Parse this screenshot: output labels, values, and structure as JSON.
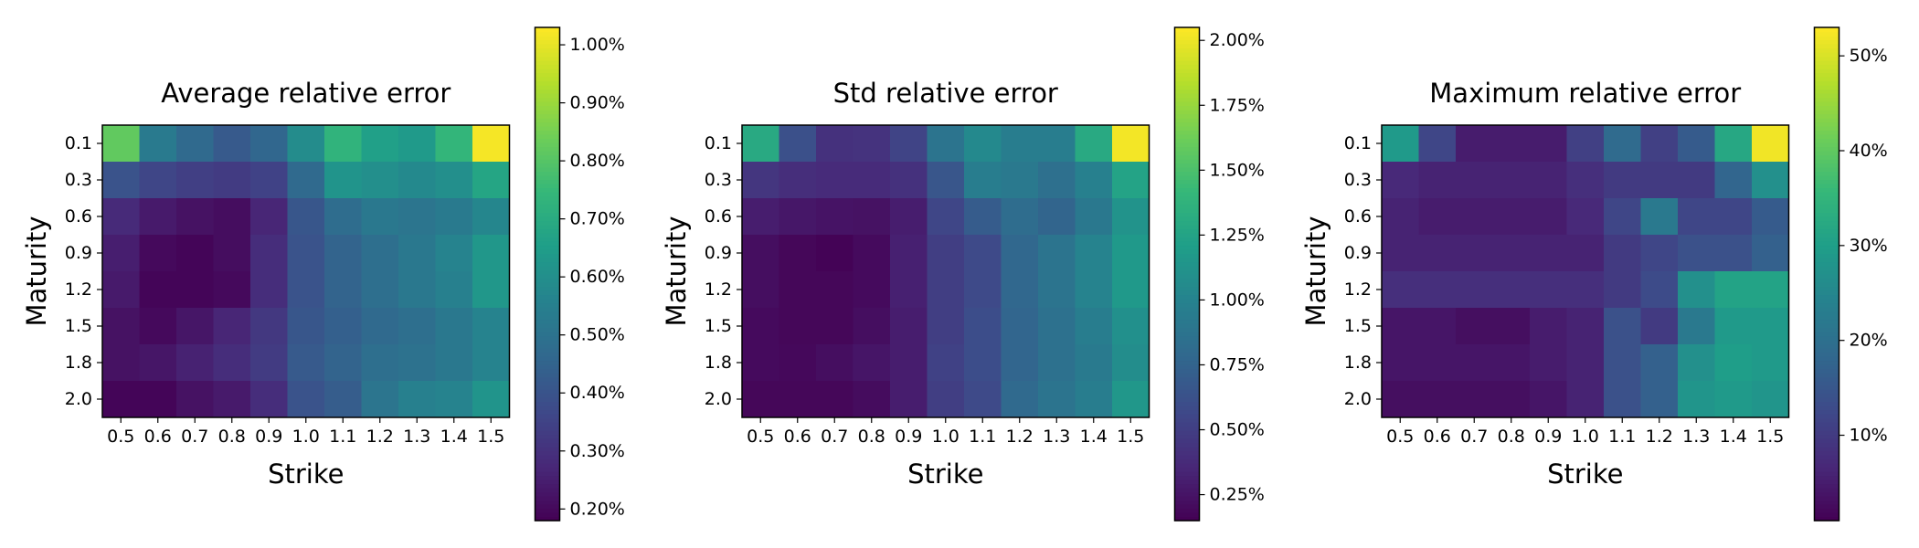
{
  "chart_data": [
    {
      "type": "heatmap",
      "title": "Average relative error",
      "xlabel": "Strike",
      "ylabel": "Maturity",
      "x": [
        "0.5",
        "0.6",
        "0.7",
        "0.8",
        "0.9",
        "1.0",
        "1.1",
        "1.2",
        "1.3",
        "1.4",
        "1.5"
      ],
      "y": [
        "0.1",
        "0.3",
        "0.6",
        "0.9",
        "1.2",
        "1.5",
        "1.8",
        "2.0"
      ],
      "values": [
        [
          0.82,
          0.53,
          0.47,
          0.42,
          0.46,
          0.59,
          0.73,
          0.66,
          0.64,
          0.74,
          1.02
        ],
        [
          0.4,
          0.36,
          0.34,
          0.33,
          0.35,
          0.47,
          0.62,
          0.6,
          0.58,
          0.6,
          0.68
        ],
        [
          0.28,
          0.24,
          0.22,
          0.21,
          0.27,
          0.41,
          0.48,
          0.52,
          0.51,
          0.53,
          0.57
        ],
        [
          0.25,
          0.2,
          0.19,
          0.21,
          0.29,
          0.4,
          0.45,
          0.49,
          0.52,
          0.56,
          0.63
        ],
        [
          0.24,
          0.19,
          0.19,
          0.2,
          0.29,
          0.4,
          0.45,
          0.49,
          0.52,
          0.55,
          0.63
        ],
        [
          0.22,
          0.2,
          0.23,
          0.27,
          0.32,
          0.41,
          0.44,
          0.47,
          0.49,
          0.52,
          0.56
        ],
        [
          0.22,
          0.23,
          0.26,
          0.29,
          0.33,
          0.42,
          0.45,
          0.49,
          0.5,
          0.52,
          0.56
        ],
        [
          0.19,
          0.19,
          0.22,
          0.24,
          0.29,
          0.4,
          0.43,
          0.51,
          0.55,
          0.56,
          0.62
        ]
      ],
      "colorbar": {
        "range": [
          0.18,
          1.03
        ],
        "ticks": [
          0.2,
          0.3,
          0.4,
          0.5,
          0.6,
          0.7,
          0.8,
          0.9,
          1.0
        ],
        "tick_labels": [
          "0.20%",
          "0.30%",
          "0.40%",
          "0.50%",
          "0.60%",
          "0.70%",
          "0.80%",
          "0.90%",
          "1.00%"
        ]
      },
      "colormap": "viridis"
    },
    {
      "type": "heatmap",
      "title": "Std relative error",
      "xlabel": "Strike",
      "ylabel": "Maturity",
      "x": [
        "0.5",
        "0.6",
        "0.7",
        "0.8",
        "0.9",
        "1.0",
        "1.1",
        "1.2",
        "1.3",
        "1.4",
        "1.5"
      ],
      "y": [
        "0.1",
        "0.3",
        "0.6",
        "0.9",
        "1.2",
        "1.5",
        "1.8",
        "2.0"
      ],
      "values": [
        [
          1.3,
          0.62,
          0.42,
          0.43,
          0.54,
          0.88,
          1.05,
          0.95,
          0.95,
          1.3,
          2.02
        ],
        [
          0.45,
          0.4,
          0.38,
          0.38,
          0.42,
          0.66,
          0.95,
          0.92,
          0.85,
          0.98,
          1.25
        ],
        [
          0.3,
          0.27,
          0.25,
          0.24,
          0.3,
          0.55,
          0.7,
          0.82,
          0.76,
          0.91,
          1.12
        ],
        [
          0.22,
          0.18,
          0.16,
          0.2,
          0.32,
          0.5,
          0.58,
          0.78,
          0.88,
          1.0,
          1.17
        ],
        [
          0.22,
          0.18,
          0.18,
          0.2,
          0.32,
          0.5,
          0.58,
          0.78,
          0.88,
          1.0,
          1.17
        ],
        [
          0.2,
          0.18,
          0.18,
          0.22,
          0.3,
          0.5,
          0.6,
          0.77,
          0.86,
          0.95,
          1.1
        ],
        [
          0.2,
          0.19,
          0.22,
          0.26,
          0.3,
          0.52,
          0.6,
          0.77,
          0.86,
          0.93,
          1.08
        ],
        [
          0.18,
          0.18,
          0.18,
          0.21,
          0.3,
          0.5,
          0.58,
          0.8,
          0.88,
          0.95,
          1.15
        ]
      ],
      "colorbar": {
        "range": [
          0.15,
          2.05
        ],
        "ticks": [
          0.25,
          0.5,
          0.75,
          1.0,
          1.25,
          1.5,
          1.75,
          2.0
        ],
        "tick_labels": [
          "0.25%",
          "0.50%",
          "0.75%",
          "1.00%",
          "1.25%",
          "1.50%",
          "1.75%",
          "2.00%"
        ]
      },
      "colormap": "viridis"
    },
    {
      "type": "heatmap",
      "title": "Maximum relative error",
      "xlabel": "Strike",
      "ylabel": "Maturity",
      "x": [
        "0.5",
        "0.6",
        "0.7",
        "0.8",
        "0.9",
        "1.0",
        "1.1",
        "1.2",
        "1.3",
        "1.4",
        "1.5"
      ],
      "y": [
        "0.1",
        "0.3",
        "0.6",
        "0.9",
        "1.2",
        "1.5",
        "1.8",
        "2.0"
      ],
      "values": [
        [
          29,
          12,
          5,
          5,
          5,
          11,
          19,
          11,
          16,
          32,
          52
        ],
        [
          7,
          6,
          6,
          6,
          6,
          8,
          10,
          10,
          10,
          18,
          27
        ],
        [
          6,
          5,
          5,
          5,
          5,
          7,
          12,
          22,
          12,
          12,
          16
        ],
        [
          6,
          6,
          6,
          6,
          6,
          6,
          10,
          12,
          14,
          14,
          17
        ],
        [
          8,
          8,
          8,
          8,
          8,
          8,
          10,
          13,
          27,
          31,
          31
        ],
        [
          4,
          4,
          3,
          3,
          5,
          6,
          14,
          10,
          22,
          29,
          29
        ],
        [
          4,
          4,
          4,
          4,
          5,
          6,
          14,
          17,
          27,
          30,
          29
        ],
        [
          3,
          3,
          3,
          3,
          4,
          6,
          14,
          17,
          28,
          29,
          28
        ]
      ],
      "colorbar": {
        "range": [
          1,
          53
        ],
        "ticks": [
          10,
          20,
          30,
          40,
          50
        ],
        "tick_labels": [
          "10%",
          "20%",
          "30%",
          "40%",
          "50%"
        ]
      },
      "colormap": "viridis"
    }
  ]
}
